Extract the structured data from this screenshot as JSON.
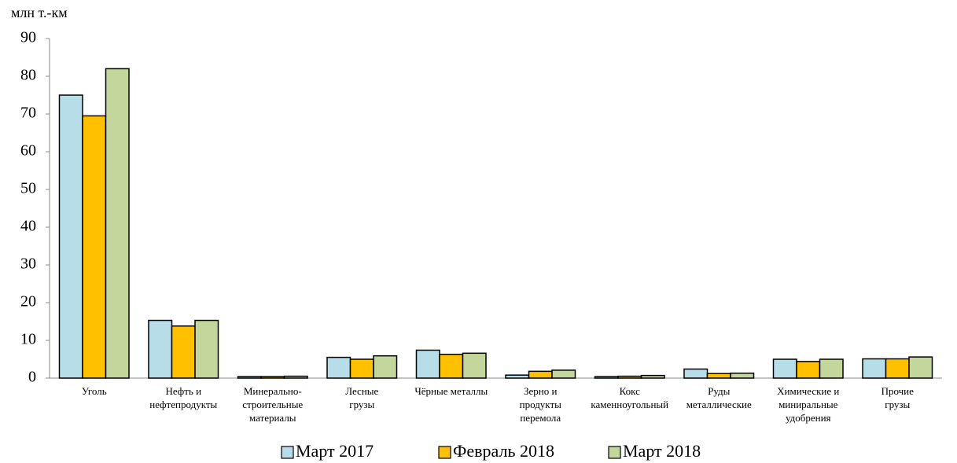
{
  "chart_data": {
    "type": "bar",
    "y_label": "млн т.-км",
    "categories": [
      "Уголь",
      "Нефть и\nнефтепродукты",
      "Минерально-\nстроительные\nматериалы",
      "Лесные\nгрузы",
      "Чёрные металлы",
      "Зерно и\nпродукты\nперемола",
      "Кокс\nкаменноугольный",
      "Руды\nметаллические",
      "Химические и\nминиральные\nудобрения",
      "Прочие\nгрузы"
    ],
    "series": [
      {
        "name": "Март 2017",
        "color": "#b7dde8",
        "values": [
          75,
          15.3,
          0.4,
          5.5,
          7.4,
          0.8,
          0.4,
          2.4,
          5.0,
          5.1
        ]
      },
      {
        "name": "Февраль 2018",
        "color": "#ffc000",
        "values": [
          69.5,
          13.8,
          0.4,
          5.0,
          6.3,
          1.8,
          0.5,
          1.2,
          4.4,
          5.1
        ]
      },
      {
        "name": "Март 2018",
        "color": "#c3d69b",
        "values": [
          82,
          15.3,
          0.5,
          5.9,
          6.6,
          2.1,
          0.7,
          1.3,
          5.0,
          5.6
        ]
      }
    ],
    "ylim": [
      0,
      90
    ],
    "yticks": [
      0,
      10,
      20,
      30,
      40,
      50,
      60,
      70,
      80,
      90
    ],
    "legend": "bottom"
  }
}
